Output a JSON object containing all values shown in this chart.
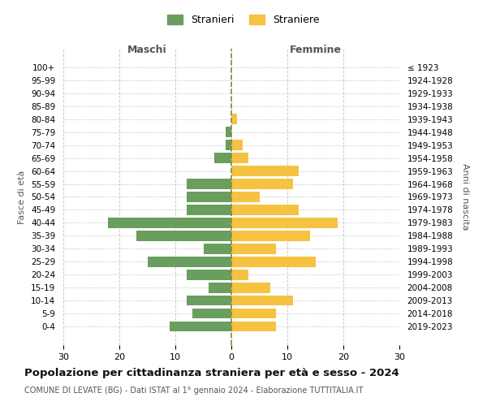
{
  "age_groups": [
    "100+",
    "95-99",
    "90-94",
    "85-89",
    "80-84",
    "75-79",
    "70-74",
    "65-69",
    "60-64",
    "55-59",
    "50-54",
    "45-49",
    "40-44",
    "35-39",
    "30-34",
    "25-29",
    "20-24",
    "15-19",
    "10-14",
    "5-9",
    "0-4"
  ],
  "birth_years": [
    "≤ 1923",
    "1924-1928",
    "1929-1933",
    "1934-1938",
    "1939-1943",
    "1944-1948",
    "1949-1953",
    "1954-1958",
    "1959-1963",
    "1964-1968",
    "1969-1973",
    "1974-1978",
    "1979-1983",
    "1984-1988",
    "1989-1993",
    "1994-1998",
    "1999-2003",
    "2004-2008",
    "2009-2013",
    "2014-2018",
    "2019-2023"
  ],
  "maschi": [
    0,
    0,
    0,
    0,
    0,
    1,
    1,
    3,
    0,
    8,
    8,
    8,
    22,
    17,
    5,
    15,
    8,
    4,
    8,
    7,
    11
  ],
  "femmine": [
    0,
    0,
    0,
    0,
    1,
    0,
    2,
    3,
    12,
    11,
    5,
    12,
    19,
    14,
    8,
    15,
    3,
    7,
    11,
    8,
    8
  ],
  "color_maschi": "#6a9e5e",
  "color_femmine": "#f5c242",
  "title": "Popolazione per cittadinanza straniera per età e sesso - 2024",
  "subtitle": "COMUNE DI LEVATE (BG) - Dati ISTAT al 1° gennaio 2024 - Elaborazione TUTTITALIA.IT",
  "xlabel_left": "Maschi",
  "xlabel_right": "Femmine",
  "ylabel_left": "Fasce di età",
  "ylabel_right": "Anni di nascita",
  "xlim": 30,
  "legend_maschi": "Stranieri",
  "legend_femmine": "Straniere",
  "background_color": "#ffffff",
  "grid_color": "#cccccc"
}
